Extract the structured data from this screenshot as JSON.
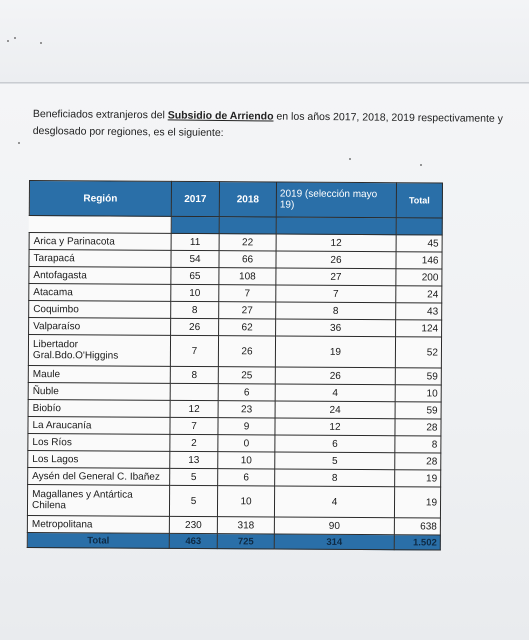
{
  "intro": {
    "part1": "Beneficiados extranjeros del ",
    "link_text": "Subsidio de Arriendo",
    "part2": " en los años 2017, 2018, 2019 respectivamente y desglosado por regiones, es el siguiente:"
  },
  "table": {
    "headers": [
      "Región",
      "2017",
      "2018",
      "2019 (selección mayo 19)",
      "Total"
    ],
    "rows": [
      [
        "Arica y Parinacota",
        "11",
        "22",
        "12",
        "45"
      ],
      [
        "Tarapacá",
        "54",
        "66",
        "26",
        "146"
      ],
      [
        "Antofagasta",
        "65",
        "108",
        "27",
        "200"
      ],
      [
        "Atacama",
        "10",
        "7",
        "7",
        "24"
      ],
      [
        "Coquimbo",
        "8",
        "27",
        "8",
        "43"
      ],
      [
        "Valparaíso",
        "26",
        "62",
        "36",
        "124"
      ],
      [
        "Libertador Gral.Bdo.O'Higgins",
        "7",
        "26",
        "19",
        "52"
      ],
      [
        "Maule",
        "8",
        "25",
        "26",
        "59"
      ],
      [
        "Ñuble",
        "",
        "6",
        "4",
        "10"
      ],
      [
        "Biobío",
        "12",
        "23",
        "24",
        "59"
      ],
      [
        "La Araucanía",
        "7",
        "9",
        "12",
        "28"
      ],
      [
        "Los Ríos",
        "2",
        "0",
        "6",
        "8"
      ],
      [
        "Los Lagos",
        "13",
        "10",
        "5",
        "28"
      ],
      [
        "Aysén del General C. Ibañez",
        "5",
        "6",
        "8",
        "19"
      ],
      [
        "Magallanes y Antártica Chilena",
        "5",
        "10",
        "4",
        "19"
      ],
      [
        "Metropolitana",
        "230",
        "318",
        "90",
        "638"
      ]
    ],
    "total_row": [
      "Total",
      "463",
      "725",
      "314",
      "1.502"
    ]
  }
}
